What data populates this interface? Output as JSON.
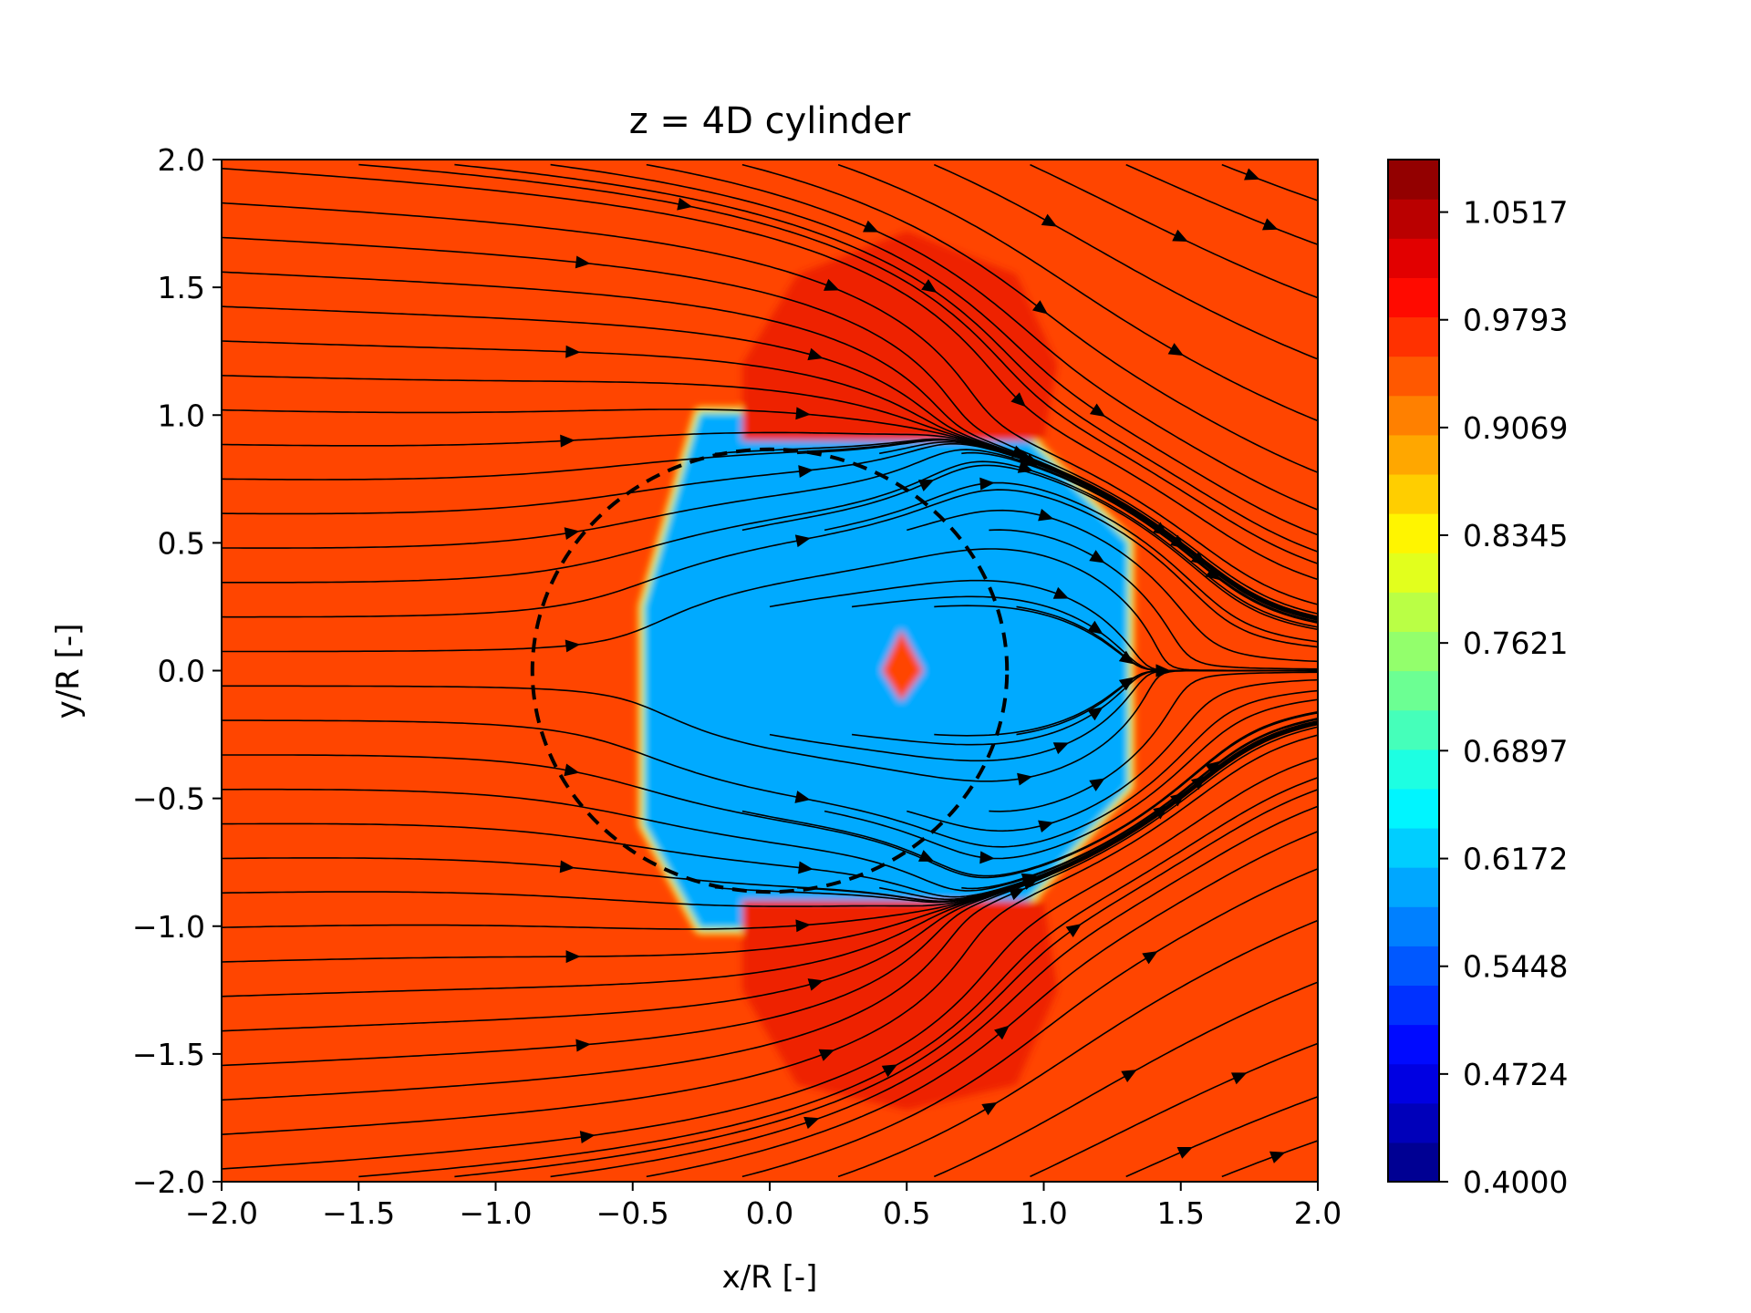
{
  "chart_data": {
    "type": "heatmap",
    "title": "z = 4D cylinder",
    "xlabel": "x/R [-]",
    "ylabel": "y/R [-]",
    "xlim": [
      -2.0,
      2.0
    ],
    "ylim": [
      -2.0,
      2.0
    ],
    "x_ticks": [
      "−2.0",
      "−1.5",
      "−1.0",
      "−0.5",
      "0.0",
      "0.5",
      "1.0",
      "1.5",
      "2.0"
    ],
    "x_tick_values": [
      -2.0,
      -1.5,
      -1.0,
      -0.5,
      0.0,
      0.5,
      1.0,
      1.5,
      2.0
    ],
    "y_ticks": [
      "2.0",
      "1.5",
      "1.0",
      "0.5",
      "0.0",
      "−0.5",
      "−1.0",
      "−1.5",
      "−2.0"
    ],
    "y_tick_values": [
      2.0,
      1.5,
      1.0,
      0.5,
      0.0,
      -0.5,
      -1.0,
      -1.5,
      -2.0
    ],
    "colorbar": {
      "colormap": "jet",
      "min": 0.4,
      "max": 1.087,
      "levels": 26,
      "ticks": [
        "1.0517",
        "0.9793",
        "0.9069",
        "0.8345",
        "0.7621",
        "0.6897",
        "0.6172",
        "0.5448",
        "0.4724",
        "0.4000"
      ],
      "tick_values": [
        1.0517,
        0.9793,
        0.9069,
        0.8345,
        0.7621,
        0.6897,
        0.6172,
        0.5448,
        0.4724,
        0.4
      ]
    },
    "field": {
      "background_value": 0.99,
      "background_color": "#ff4500",
      "regions": [
        {
          "name": "wake-core",
          "value": 0.62,
          "color": "#00aaff",
          "polygon": [
            [
              -0.25,
              1.0
            ],
            [
              0.85,
              1.0
            ],
            [
              1.3,
              0.5
            ],
            [
              1.3,
              -0.45
            ],
            [
              0.85,
              -1.0
            ],
            [
              -0.25,
              -1.0
            ],
            [
              -0.45,
              -0.6
            ],
            [
              -0.45,
              0.25
            ]
          ]
        },
        {
          "name": "upper-high-lobe",
          "value": 1.02,
          "color": "#ee2200",
          "polygon": [
            [
              -0.1,
              1.2
            ],
            [
              0.1,
              1.55
            ],
            [
              0.5,
              1.72
            ],
            [
              0.9,
              1.55
            ],
            [
              1.05,
              1.2
            ],
            [
              1.0,
              0.9
            ],
            [
              -0.1,
              0.9
            ]
          ]
        },
        {
          "name": "lower-high-lobe",
          "value": 1.02,
          "color": "#ee2200",
          "polygon": [
            [
              -0.1,
              -0.9
            ],
            [
              1.0,
              -0.9
            ],
            [
              1.05,
              -1.25
            ],
            [
              0.9,
              -1.62
            ],
            [
              0.5,
              -1.72
            ],
            [
              0.1,
              -1.62
            ],
            [
              -0.1,
              -1.25
            ]
          ]
        },
        {
          "name": "center-spot",
          "value": 0.98,
          "color": "#ff4500",
          "polygon": [
            [
              0.48,
              0.16
            ],
            [
              0.56,
              0.0
            ],
            [
              0.48,
              -0.12
            ],
            [
              0.41,
              0.0
            ]
          ]
        }
      ]
    },
    "overlays": {
      "circle": {
        "center": [
          0.0,
          0.0
        ],
        "radius": 0.866,
        "style": "dashed",
        "color": "#000000"
      },
      "streamlines": "black streamline field, converging toward the wake core from both sides"
    }
  }
}
